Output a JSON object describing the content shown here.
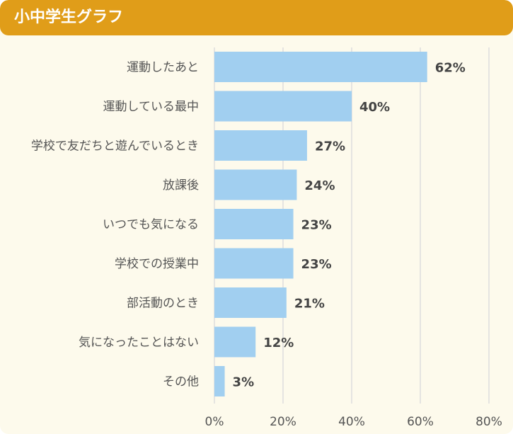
{
  "header": {
    "title": "小中学生グラフ"
  },
  "colors": {
    "header_bg": "#e09d19",
    "card_bg": "#fdfaec",
    "bar": "#a1cff0",
    "grid": "#dddddd"
  },
  "chart_data": {
    "type": "bar",
    "orientation": "horizontal",
    "categories": [
      "運動したあと",
      "運動している最中",
      "学校で友だちと遊んでいるとき",
      "放課後",
      "いつでも気になる",
      "学校での授業中",
      "部活動のとき",
      "気になったことはない",
      "その他"
    ],
    "values": [
      62,
      40,
      27,
      24,
      23,
      23,
      21,
      12,
      3
    ],
    "value_labels": [
      "62%",
      "40%",
      "27%",
      "24%",
      "23%",
      "23%",
      "21%",
      "12%",
      "3%"
    ],
    "xlim": [
      0,
      80
    ],
    "xticks": [
      0,
      20,
      40,
      60,
      80
    ],
    "xtick_labels": [
      "0%",
      "20%",
      "40%",
      "60%",
      "80%"
    ],
    "grid": true
  }
}
